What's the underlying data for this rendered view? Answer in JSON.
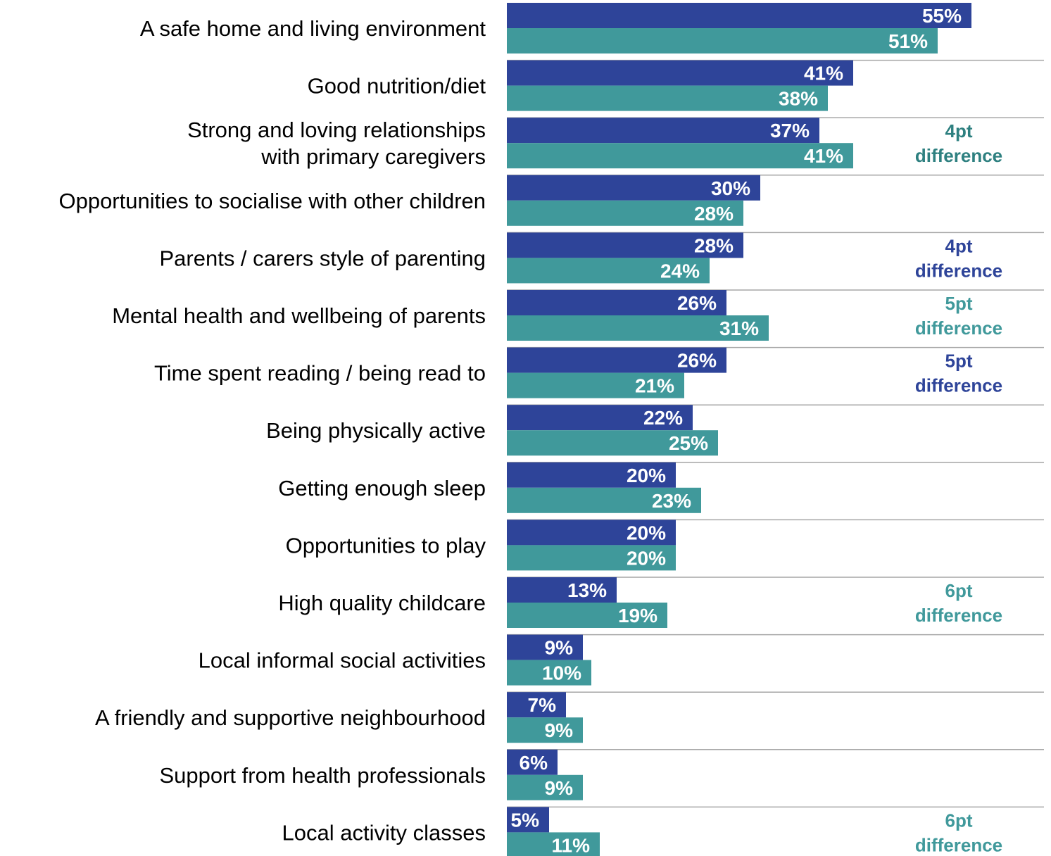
{
  "chart_data": {
    "type": "bar",
    "orientation": "horizontal",
    "categories": [
      [
        "A safe home and living environment"
      ],
      [
        "Good nutrition/diet"
      ],
      [
        "Strong and loving relationships",
        "with primary caregivers"
      ],
      [
        "Opportunities to socialise with other children"
      ],
      [
        "Parents / carers style of parenting"
      ],
      [
        "Mental health and wellbeing of parents"
      ],
      [
        "Time spent reading / being read to"
      ],
      [
        "Being physically active"
      ],
      [
        "Getting enough sleep"
      ],
      [
        "Opportunities to play"
      ],
      [
        "High quality childcare"
      ],
      [
        "Local informal social activities"
      ],
      [
        "A friendly and supportive neighbourhood"
      ],
      [
        "Support from health professionals"
      ],
      [
        "Local activity classes"
      ]
    ],
    "series": [
      {
        "values": [
          55,
          41,
          37,
          30,
          28,
          26,
          26,
          22,
          20,
          20,
          13,
          9,
          7,
          6,
          5
        ],
        "color": "#2e4499"
      },
      {
        "values": [
          51,
          38,
          41,
          28,
          24,
          31,
          21,
          25,
          23,
          20,
          19,
          10,
          9,
          9,
          11
        ],
        "color": "#40999b"
      }
    ],
    "value_suffix": "%",
    "annotations": [
      {
        "category_index": 2,
        "lines": [
          "4pt",
          "difference"
        ],
        "color": "#2e8080"
      },
      {
        "category_index": 4,
        "lines": [
          "4pt",
          "difference"
        ],
        "color": "#2e4499"
      },
      {
        "category_index": 5,
        "lines": [
          "5pt",
          "difference"
        ],
        "color": "#40999b"
      },
      {
        "category_index": 6,
        "lines": [
          "5pt",
          "difference"
        ],
        "color": "#2e4499"
      },
      {
        "category_index": 10,
        "lines": [
          "6pt",
          "difference"
        ],
        "color": "#40999b"
      },
      {
        "category_index": 14,
        "lines": [
          "6pt",
          "difference"
        ],
        "color": "#40999b"
      }
    ],
    "xlim": [
      0,
      60
    ],
    "grid": false,
    "legend": "none"
  }
}
